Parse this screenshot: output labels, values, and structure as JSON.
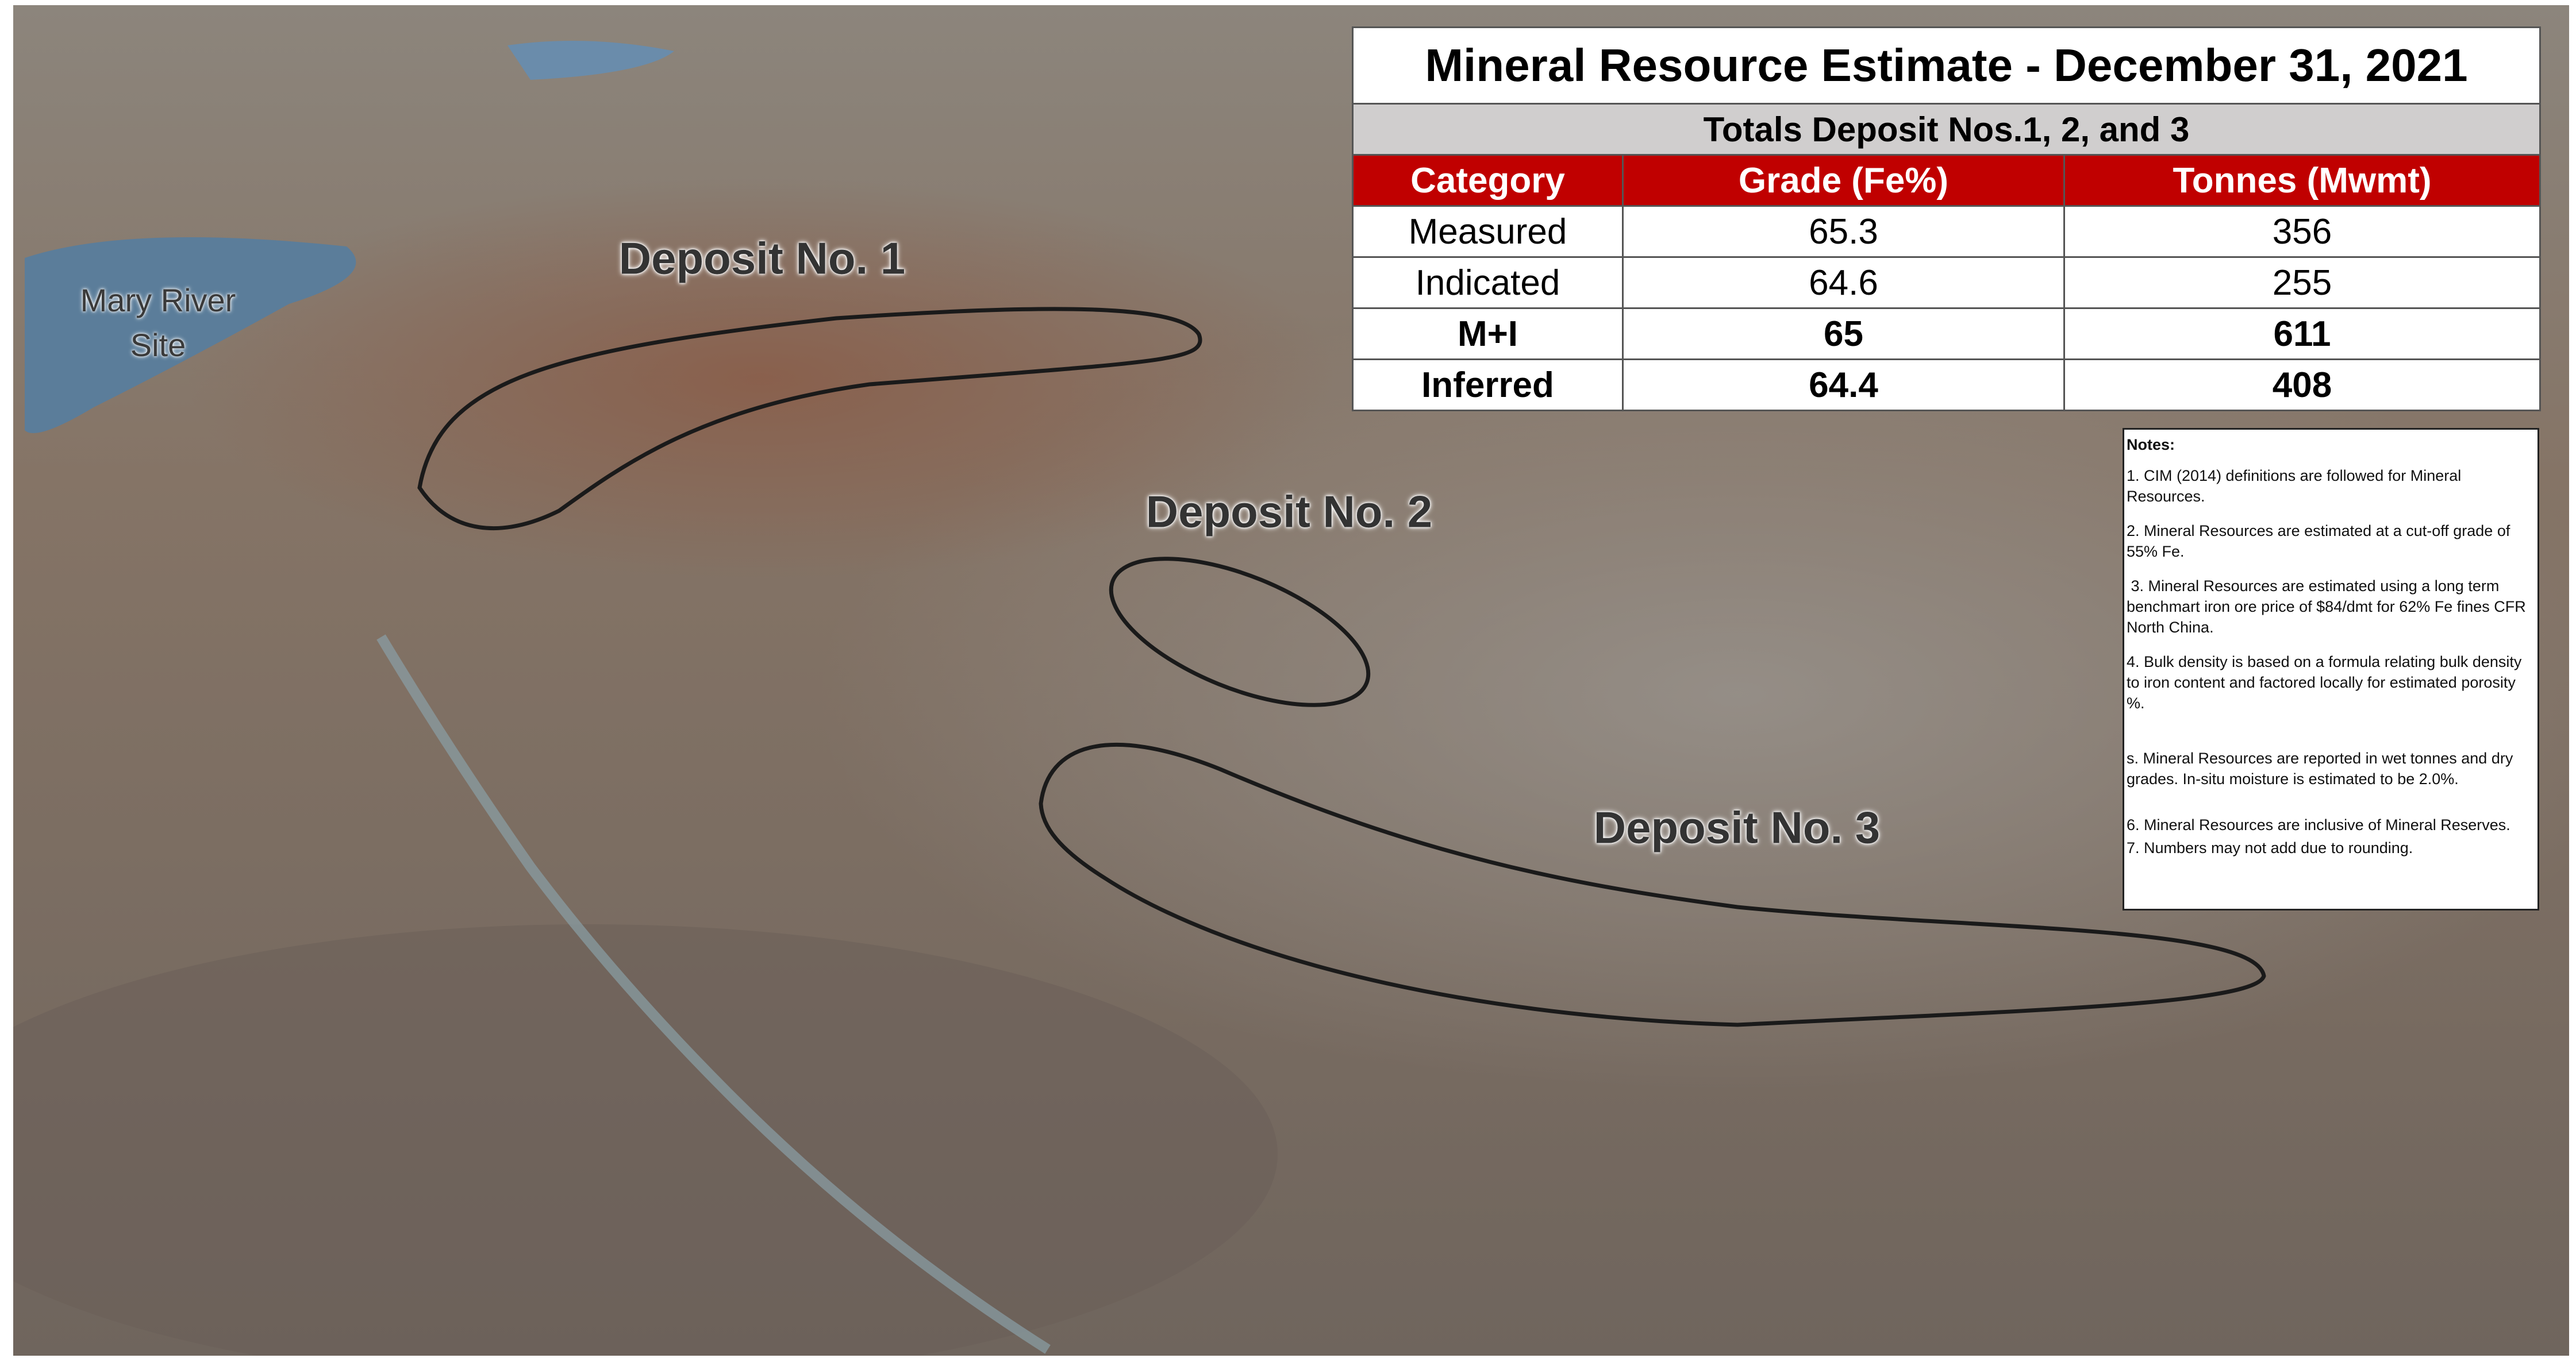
{
  "site_label": [
    "Mary River",
    "Site"
  ],
  "deposits": [
    "Deposit No. 1",
    "Deposit No. 2",
    "Deposit No. 3"
  ],
  "table": {
    "title": "Mineral Resource Estimate - December 31, 2021",
    "subtitle": "Totals Deposit Nos.1, 2, and 3",
    "header": [
      "Category",
      "Grade (Fe%)",
      "Tonnes (Mwmt)"
    ],
    "rows": [
      [
        "Measured",
        65.3,
        356
      ],
      [
        "Indicated",
        64.6,
        255
      ],
      [
        "M+I",
        65,
        611
      ],
      [
        "Inferred",
        64.4,
        408
      ]
    ]
  },
  "notes": {
    "title": "Notes:",
    "items": [
      "1. CIM (2014) definitions are followed for Mineral Resources.",
      "2. Mineral Resources are estimated at a cut-off grade of 55% Fe.",
      " 3. Mineral Resources are estimated using a long term benchmart iron ore price of $84/dmt for 62% Fe fines CFR North China.",
      "4. Bulk density is based on a formula relating bulk density to iron content and factored locally for estimated porosity %.",
      "s. Mineral Resources are reported in wet tonnes and dry grades. In-situ moisture is estimated to be 2.0%.",
      "6. Mineral Resources are inclusive of Mineral Reserves.",
      "7. Numbers may not add due to rounding."
    ]
  }
}
